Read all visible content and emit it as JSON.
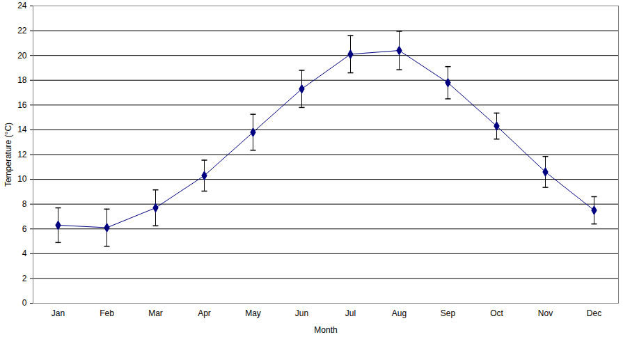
{
  "chart_data": {
    "type": "line",
    "x_label": "Month",
    "y_label": "Temperature (°C)",
    "categories": [
      "Jan",
      "Feb",
      "Mar",
      "Apr",
      "May",
      "Jun",
      "Jul",
      "Aug",
      "Sep",
      "Oct",
      "Nov",
      "Dec"
    ],
    "values": [
      6.3,
      6.1,
      7.7,
      10.3,
      13.8,
      17.3,
      20.1,
      20.4,
      17.8,
      14.3,
      10.6,
      7.5
    ],
    "errors": [
      1.4,
      1.5,
      1.45,
      1.25,
      1.45,
      1.5,
      1.5,
      1.55,
      1.3,
      1.05,
      1.25,
      1.1
    ],
    "color": "#000080",
    "marker": "diamond",
    "ylim": [
      0,
      24
    ],
    "yticks": [
      0,
      2,
      4,
      6,
      8,
      10,
      12,
      14,
      16,
      18,
      20,
      22,
      24
    ],
    "grid": true
  }
}
